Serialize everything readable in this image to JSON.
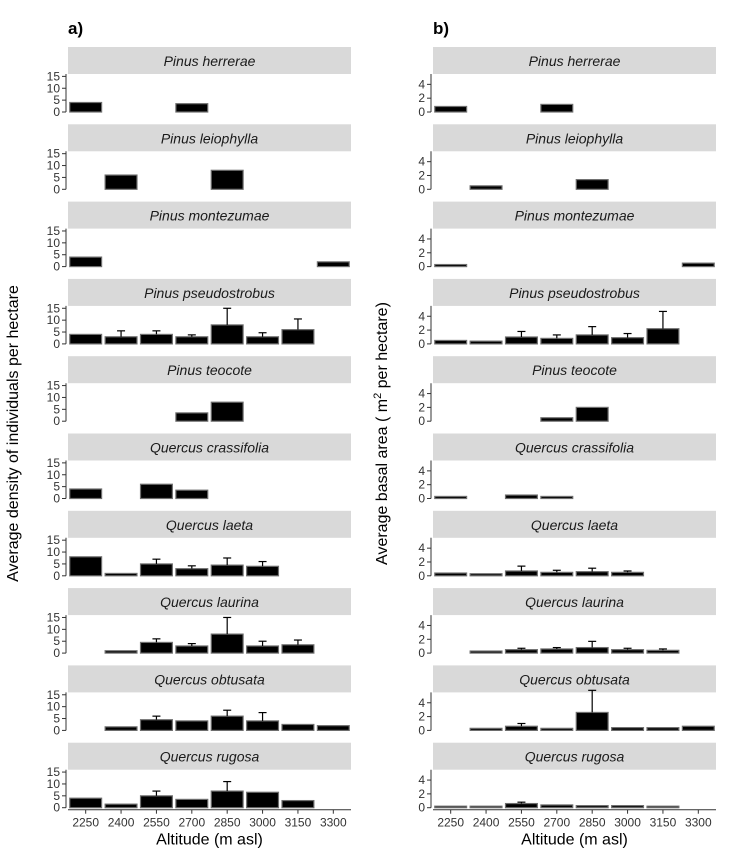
{
  "chart_data": [
    {
      "type": "bar",
      "panel_label": "a)",
      "ylabel": "Average density of individuals per hectare",
      "xlabel": "Altitude (m asl)",
      "categories": [
        "2250",
        "2400",
        "2550",
        "2700",
        "2850",
        "3000",
        "3150",
        "3300"
      ],
      "yticks": [
        0,
        5,
        10,
        15
      ],
      "ylim": [
        0,
        16
      ],
      "facets": [
        {
          "name": "Pinus herrerae",
          "values": [
            4,
            null,
            null,
            3.5,
            null,
            null,
            null,
            null
          ],
          "errors": [
            0,
            null,
            null,
            0,
            null,
            null,
            null,
            null
          ]
        },
        {
          "name": "Pinus leiophylla",
          "values": [
            null,
            6,
            null,
            null,
            8,
            null,
            null,
            null
          ],
          "errors": [
            null,
            0,
            null,
            null,
            0,
            null,
            null,
            null
          ]
        },
        {
          "name": "Pinus montezumae",
          "values": [
            4,
            null,
            null,
            null,
            null,
            null,
            null,
            2
          ],
          "errors": [
            0,
            null,
            null,
            null,
            null,
            null,
            null,
            0
          ]
        },
        {
          "name": "Pinus pseudostrobus",
          "values": [
            4,
            3,
            4,
            3,
            8,
            3,
            6,
            null
          ],
          "errors": [
            0,
            2.5,
            1.5,
            0.8,
            7,
            1.7,
            4.5,
            null
          ]
        },
        {
          "name": "Pinus teocote",
          "values": [
            null,
            null,
            null,
            3.5,
            8,
            null,
            null,
            null
          ],
          "errors": [
            null,
            null,
            null,
            0,
            0,
            null,
            null,
            null
          ]
        },
        {
          "name": "Quercus crassifolia",
          "values": [
            4,
            null,
            6,
            3.5,
            null,
            null,
            null,
            null
          ],
          "errors": [
            0,
            null,
            0,
            0,
            null,
            null,
            null,
            null
          ]
        },
        {
          "name": "Quercus laeta",
          "values": [
            8,
            1,
            5,
            3,
            4.5,
            4,
            null,
            null
          ],
          "errors": [
            0,
            0,
            2,
            1.2,
            3,
            2,
            null,
            null
          ]
        },
        {
          "name": "Quercus laurina",
          "values": [
            null,
            1,
            4.5,
            3,
            8,
            3,
            3.5,
            null
          ],
          "errors": [
            null,
            0,
            1.5,
            1,
            7,
            2,
            2,
            null
          ]
        },
        {
          "name": "Quercus obtusata",
          "values": [
            null,
            1.5,
            4.5,
            4,
            6,
            4,
            2.5,
            2
          ],
          "errors": [
            null,
            0,
            1.5,
            0,
            2.5,
            3.5,
            0,
            0
          ]
        },
        {
          "name": "Quercus rugosa",
          "values": [
            4,
            1.5,
            5,
            3.5,
            7,
            6.5,
            3,
            null
          ],
          "errors": [
            0,
            0,
            2,
            0,
            4,
            0,
            0,
            null
          ]
        }
      ]
    },
    {
      "type": "bar",
      "panel_label": "b)",
      "ylabel_prefix": "Average basal area ( m",
      "ylabel_superscript": "2",
      "ylabel_suffix": " per hectare)",
      "xlabel": "Altitude (m asl)",
      "categories": [
        "2250",
        "2400",
        "2550",
        "2700",
        "2850",
        "3000",
        "3150",
        "3300"
      ],
      "yticks": [
        0,
        2,
        4
      ],
      "ylim": [
        0,
        5.5
      ],
      "facets": [
        {
          "name": "Pinus herrerae",
          "values": [
            0.8,
            null,
            null,
            1.1,
            null,
            null,
            null,
            null
          ],
          "errors": [
            0,
            null,
            null,
            0,
            null,
            null,
            null,
            null
          ]
        },
        {
          "name": "Pinus leiophylla",
          "values": [
            null,
            0.5,
            null,
            null,
            1.4,
            null,
            null,
            null
          ],
          "errors": [
            null,
            0,
            null,
            null,
            0,
            null,
            null,
            null
          ]
        },
        {
          "name": "Pinus montezumae",
          "values": [
            0.3,
            null,
            null,
            null,
            null,
            null,
            null,
            0.5
          ],
          "errors": [
            0,
            null,
            null,
            null,
            null,
            null,
            null,
            0
          ]
        },
        {
          "name": "Pinus pseudostrobus",
          "values": [
            0.5,
            0.4,
            1.0,
            0.8,
            1.3,
            0.9,
            2.2,
            null
          ],
          "errors": [
            0,
            0,
            0.8,
            0.5,
            1.2,
            0.6,
            2.5,
            null
          ]
        },
        {
          "name": "Pinus teocote",
          "values": [
            null,
            null,
            null,
            0.5,
            2.0,
            null,
            null,
            null
          ],
          "errors": [
            null,
            null,
            null,
            0,
            0,
            null,
            null,
            null
          ]
        },
        {
          "name": "Quercus crassifolia",
          "values": [
            0.3,
            null,
            0.5,
            0.3,
            null,
            null,
            null,
            null
          ],
          "errors": [
            0,
            null,
            0,
            0,
            null,
            null,
            null,
            null
          ]
        },
        {
          "name": "Quercus laeta",
          "values": [
            0.4,
            0.3,
            0.7,
            0.5,
            0.6,
            0.5,
            null,
            null
          ],
          "errors": [
            0,
            0,
            0.7,
            0.3,
            0.5,
            0.2,
            null,
            null
          ]
        },
        {
          "name": "Quercus laurina",
          "values": [
            null,
            0.3,
            0.5,
            0.6,
            0.8,
            0.5,
            0.4,
            null
          ],
          "errors": [
            null,
            0,
            0.2,
            0.2,
            0.9,
            0.2,
            0.2,
            null
          ]
        },
        {
          "name": "Quercus obtusata",
          "values": [
            null,
            0.3,
            0.6,
            0.3,
            2.6,
            0.4,
            0.4,
            0.6
          ],
          "errors": [
            null,
            0,
            0.4,
            0,
            3.2,
            0,
            0,
            0
          ]
        },
        {
          "name": "Quercus rugosa",
          "values": [
            0.1,
            0.1,
            0.6,
            0.4,
            0.3,
            0.3,
            0.2,
            null
          ],
          "errors": [
            0,
            0,
            0.2,
            0,
            0,
            0,
            0,
            null
          ]
        }
      ]
    }
  ]
}
